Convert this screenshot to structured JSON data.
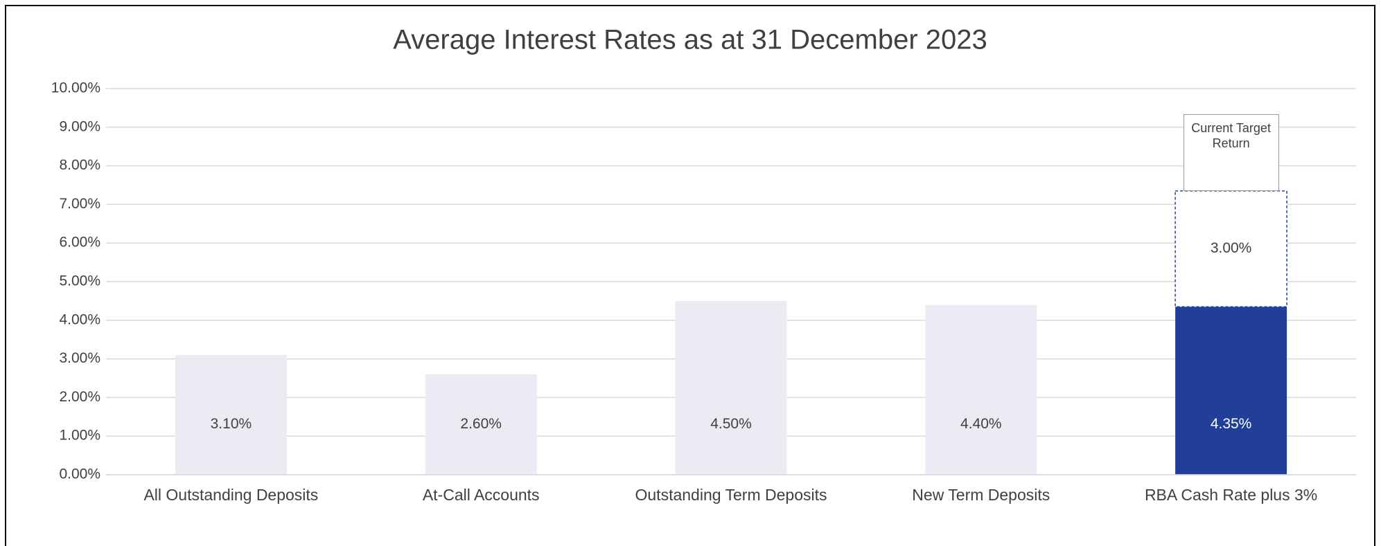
{
  "chart_data": {
    "type": "stacked_bar",
    "title": "Average Interest Rates as at 31 December 2023",
    "categories": [
      "All Outstanding Deposits",
      "At-Call Accounts",
      "Outstanding Term Deposits",
      "New Term Deposits",
      "RBA Cash Rate plus 3%"
    ],
    "series": [
      {
        "colors": [
          "#ecebf4",
          "#ecebf4",
          "#ecebf4",
          "#ecebf4",
          "#213f99"
        ],
        "values": [
          3.1,
          2.6,
          4.5,
          4.4,
          4.35
        ],
        "value_labels": [
          "3.10%",
          "2.60%",
          "4.50%",
          "4.40%",
          "4.35%"
        ]
      },
      {
        "color": "#ffffff",
        "border": "#213f99",
        "values": [
          null,
          null,
          null,
          null,
          3.0
        ],
        "value_labels": [
          null,
          null,
          null,
          null,
          "3.00%"
        ]
      }
    ],
    "annotation": "Current Target Return",
    "ylim": [
      0,
      10
    ],
    "yticks": [
      {
        "value": 0,
        "label": "0.00%"
      },
      {
        "value": 1,
        "label": "1.00%"
      },
      {
        "value": 2,
        "label": "2.00%"
      },
      {
        "value": 3,
        "label": "3.00%"
      },
      {
        "value": 4,
        "label": "4.00%"
      },
      {
        "value": 5,
        "label": "5.00%"
      },
      {
        "value": 6,
        "label": "6.00%"
      },
      {
        "value": 7,
        "label": "7.00%"
      },
      {
        "value": 8,
        "label": "8.00%"
      },
      {
        "value": 9,
        "label": "9.00%"
      },
      {
        "value": 10,
        "label": "10.00%"
      }
    ],
    "grid": true
  }
}
